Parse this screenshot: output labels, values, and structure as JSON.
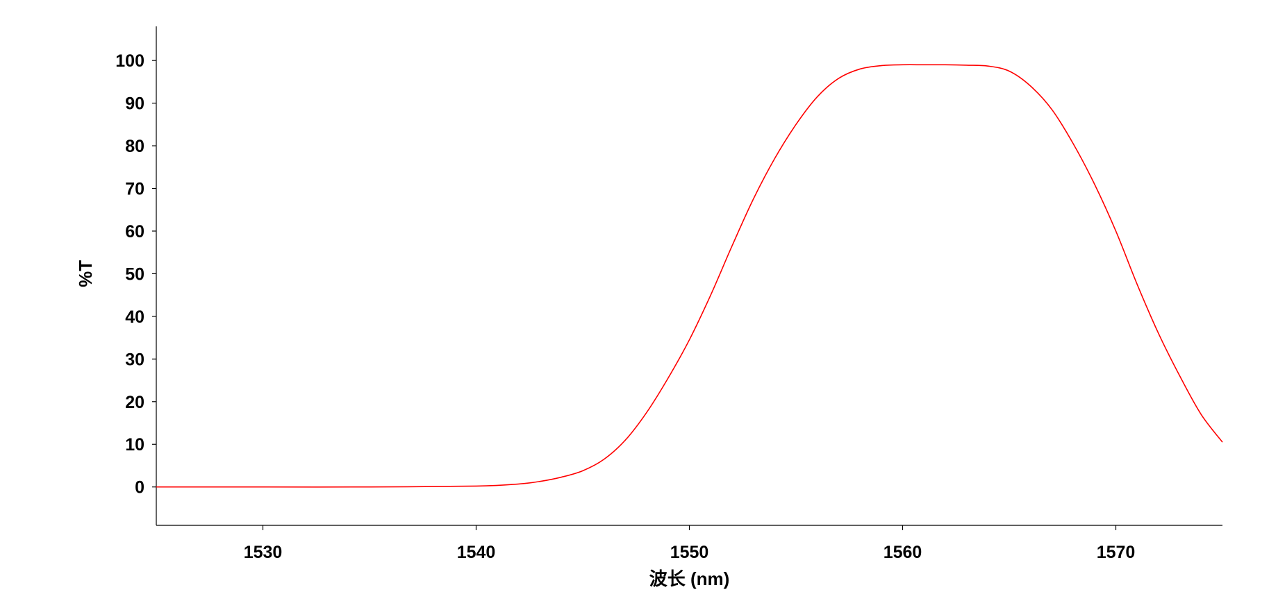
{
  "chart_data": {
    "type": "line",
    "title": "",
    "xlabel": "波长 (nm)",
    "ylabel": "%T",
    "xlim": [
      1525,
      1575
    ],
    "ylim": [
      -9,
      108
    ],
    "xticks": [
      1530,
      1540,
      1550,
      1560,
      1570
    ],
    "yticks": [
      0,
      10,
      20,
      30,
      40,
      50,
      60,
      70,
      80,
      90,
      100
    ],
    "grid": false,
    "legend": "none",
    "series": [
      {
        "color": "#ff0000",
        "x": [
          1525,
          1530,
          1535,
          1540,
          1542,
          1543,
          1544,
          1545,
          1546,
          1547,
          1548,
          1549,
          1550,
          1551,
          1552,
          1553,
          1554,
          1555,
          1556,
          1557,
          1558,
          1559,
          1560,
          1561,
          1562,
          1563,
          1564,
          1565,
          1566,
          1567,
          1568,
          1569,
          1570,
          1571,
          1572,
          1573,
          1574,
          1575
        ],
        "y": [
          0,
          0,
          0,
          0.2,
          0.7,
          1.3,
          2.3,
          3.8,
          6.5,
          11.0,
          17.5,
          25.5,
          34.5,
          45.0,
          56.5,
          67.5,
          77.0,
          85.0,
          91.5,
          95.8,
          98.0,
          98.8,
          99.0,
          99.0,
          99.0,
          98.9,
          98.7,
          97.5,
          94.0,
          88.5,
          80.5,
          71.0,
          60.0,
          47.5,
          36.0,
          26.0,
          17.0,
          10.5
        ]
      }
    ]
  }
}
